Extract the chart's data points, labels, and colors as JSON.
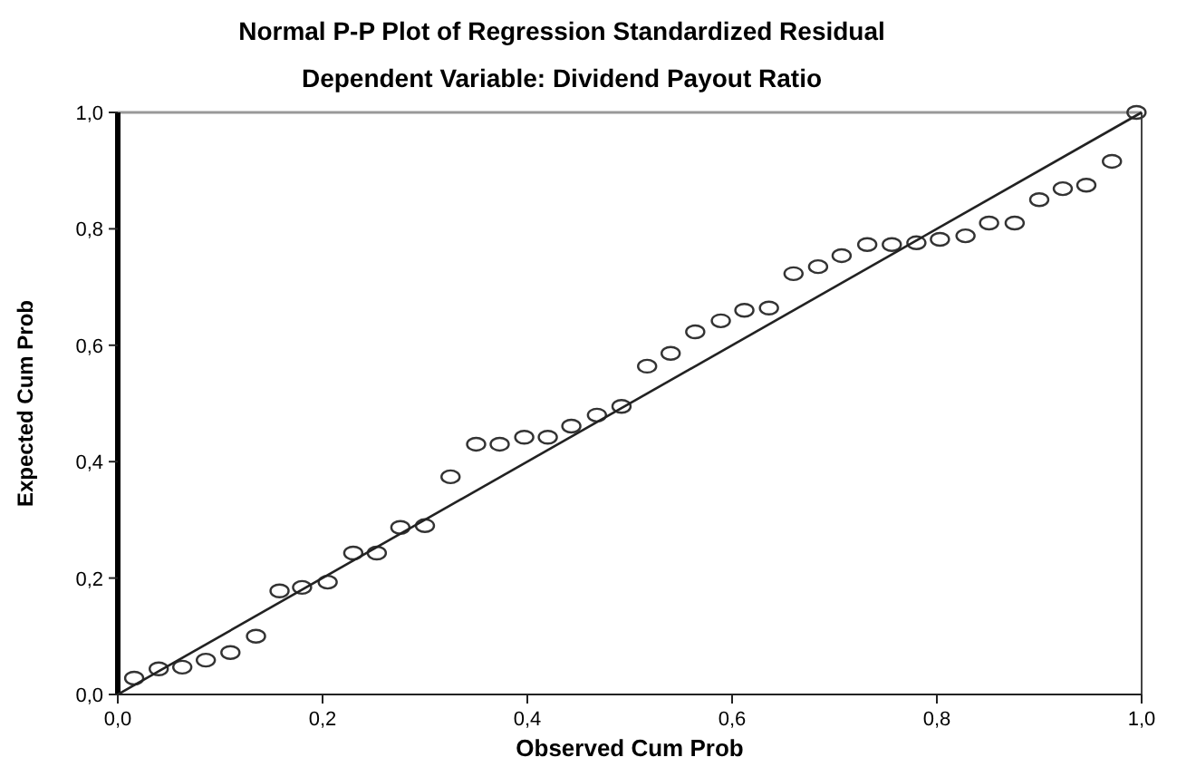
{
  "chart_data": {
    "type": "scatter",
    "title": "Normal P-P Plot of Regression Standardized Residual",
    "subtitle": "Dependent Variable: Dividend Payout Ratio",
    "xlabel": "Observed Cum Prob",
    "ylabel": "Expected Cum Prob",
    "xlim": [
      0,
      1
    ],
    "ylim": [
      0,
      1
    ],
    "xticks": [
      {
        "value": 0,
        "label": "0,0"
      },
      {
        "value": 0.2,
        "label": "0,2"
      },
      {
        "value": 0.4,
        "label": "0,4"
      },
      {
        "value": 0.6,
        "label": "0,6"
      },
      {
        "value": 0.8,
        "label": "0,8"
      },
      {
        "value": 1,
        "label": "1,0"
      }
    ],
    "yticks": [
      {
        "value": 0,
        "label": "0,0"
      },
      {
        "value": 0.2,
        "label": "0,2"
      },
      {
        "value": 0.4,
        "label": "0,4"
      },
      {
        "value": 0.6,
        "label": "0,6"
      },
      {
        "value": 0.8,
        "label": "0,8"
      },
      {
        "value": 1,
        "label": "1,0"
      }
    ],
    "grid": false,
    "series": [
      {
        "type": "scatter",
        "marker": "circle",
        "color": "#333333",
        "x": [
          0.016,
          0.04,
          0.063,
          0.086,
          0.11,
          0.135,
          0.158,
          0.18,
          0.205,
          0.23,
          0.253,
          0.276,
          0.3,
          0.325,
          0.35,
          0.373,
          0.397,
          0.42,
          0.443,
          0.468,
          0.492,
          0.517,
          0.54,
          0.564,
          0.589,
          0.612,
          0.636,
          0.66,
          0.684,
          0.707,
          0.732,
          0.756,
          0.78,
          0.803,
          0.828,
          0.851,
          0.876,
          0.9,
          0.923,
          0.946,
          0.971,
          0.995
        ],
        "values": [
          0.028,
          0.044,
          0.047,
          0.059,
          0.072,
          0.1,
          0.178,
          0.184,
          0.193,
          0.243,
          0.243,
          0.287,
          0.29,
          0.374,
          0.43,
          0.43,
          0.442,
          0.442,
          0.461,
          0.48,
          0.495,
          0.564,
          0.586,
          0.623,
          0.642,
          0.66,
          0.664,
          0.723,
          0.735,
          0.754,
          0.773,
          0.773,
          0.776,
          0.782,
          0.788,
          0.81,
          0.81,
          0.85,
          0.869,
          0.875,
          0.916,
          1.0
        ]
      },
      {
        "type": "line",
        "marker": "none",
        "line_style": "solid",
        "color": "#222222",
        "x": [
          0,
          1
        ],
        "values": [
          0,
          1
        ]
      }
    ]
  }
}
